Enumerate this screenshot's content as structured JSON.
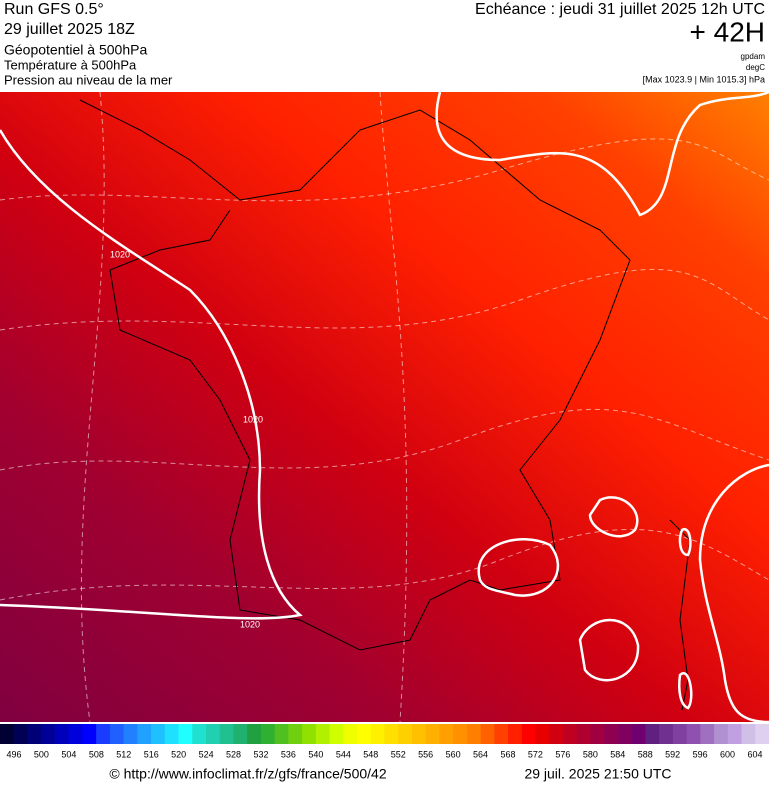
{
  "header": {
    "run": "Run GFS 0.5°",
    "date": "29 juillet 2025 18Z",
    "field1": "Géopotentiel à 500hPa",
    "field2": "Température à 500hPa",
    "field3": "Pression au niveau de la mer",
    "echeance": "Echéance : jeudi 31 juillet 2025 12h UTC",
    "lead": "+ 42H",
    "unit1": "gpdam",
    "unit2": "degC",
    "range": "[Max 1023.9 | Min 1015.3] hPa"
  },
  "map": {
    "contour_labels": [
      "1020",
      "1020",
      "1020"
    ]
  },
  "colorbar": {
    "labels": [
      496,
      500,
      504,
      508,
      512,
      516,
      520,
      524,
      528,
      532,
      536,
      540,
      544,
      548,
      552,
      556,
      560,
      564,
      568,
      572,
      576,
      580,
      584,
      588,
      592,
      596,
      600,
      604
    ],
    "colors": [
      "#000033",
      "#000055",
      "#000077",
      "#000099",
      "#0000bb",
      "#0000dd",
      "#0000ff",
      "#1a3cff",
      "#2060ff",
      "#2080ff",
      "#20a0ff",
      "#20c0ff",
      "#20e0ff",
      "#20ffff",
      "#20e0d0",
      "#20d0b0",
      "#20c090",
      "#20b070",
      "#20a040",
      "#30b030",
      "#50c020",
      "#70d010",
      "#90e000",
      "#b0f000",
      "#d0ff00",
      "#f0ff00",
      "#ffff00",
      "#fff000",
      "#ffe000",
      "#ffd000",
      "#ffc000",
      "#ffb000",
      "#ffa000",
      "#ff9000",
      "#ff8000",
      "#ff6000",
      "#ff4000",
      "#ff2000",
      "#ff0000",
      "#e80000",
      "#d00010",
      "#c00020",
      "#b00030",
      "#a00040",
      "#900050",
      "#800060",
      "#700070",
      "#602080",
      "#703090",
      "#8040a0",
      "#9050b0",
      "#a070c0",
      "#b090d0",
      "#c0a0e0",
      "#d0c0e8",
      "#e0d0f0"
    ]
  },
  "footer": {
    "url": "© http://www.infoclimat.fr/z/gfs/france/500/42",
    "timestamp": "29 juil. 2025 21:50 UTC"
  }
}
